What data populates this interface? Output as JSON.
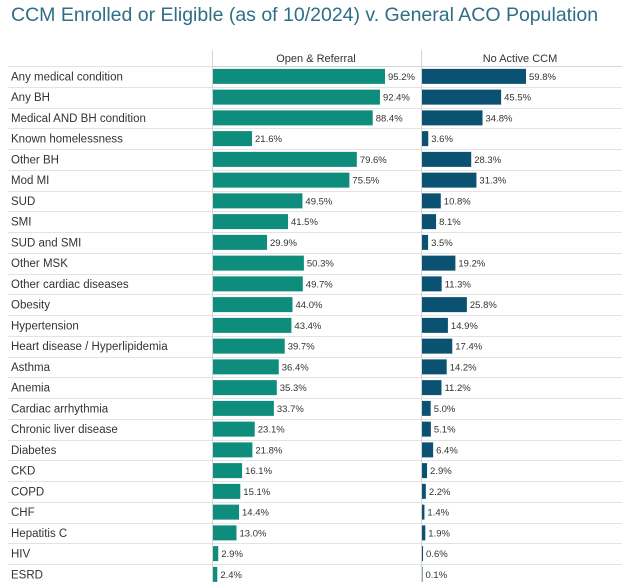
{
  "colors": {
    "series1": "#0e8c7c",
    "series2": "#0b5272",
    "title": "#2e6e86",
    "grid": "#e3e3e3"
  },
  "chart_data": {
    "type": "bar",
    "orientation": "horizontal",
    "title": "CCM Enrolled or Eligible (as of 10/2024) v. General ACO Population",
    "categories": [
      "Any medical condition",
      "Any BH",
      "Medical AND BH condition",
      "Known homelessness",
      "Other BH",
      "Mod MI",
      "SUD",
      "SMI",
      "SUD and SMI",
      "Other MSK",
      "Other cardiac diseases",
      "Obesity",
      "Hypertension",
      "Heart disease / Hyperlipidemia",
      "Asthma",
      "Anemia",
      "Cardiac arrhythmia",
      "Chronic liver disease",
      "Diabetes",
      "CKD",
      "COPD",
      "CHF",
      "Hepatitis C",
      "HIV",
      "ESRD"
    ],
    "series": [
      {
        "name": "Open & Referral",
        "unit": "%",
        "values": [
          95.2,
          92.4,
          88.4,
          21.6,
          79.6,
          75.5,
          49.5,
          41.5,
          29.9,
          50.3,
          49.7,
          44.0,
          43.4,
          39.7,
          36.4,
          35.3,
          33.7,
          23.1,
          21.8,
          16.1,
          15.1,
          14.4,
          13.0,
          2.9,
          2.4
        ],
        "labels": [
          "95.2%",
          "92.4%",
          "88.4%",
          "21.6%",
          "79.6%",
          "75.5%",
          "49.5%",
          "41.5%",
          "29.9%",
          "50.3%",
          "49.7%",
          "44.0%",
          "43.4%",
          "39.7%",
          "36.4%",
          "35.3%",
          "33.7%",
          "23.1%",
          "21.8%",
          "16.1%",
          "15.1%",
          "14.4%",
          "13.0%",
          "2.9%",
          "2.4%"
        ]
      },
      {
        "name": "No Active CCM",
        "unit": "%",
        "values": [
          59.8,
          45.5,
          34.8,
          3.6,
          28.3,
          31.3,
          10.8,
          8.1,
          3.5,
          19.2,
          11.3,
          25.8,
          14.9,
          17.4,
          14.2,
          11.2,
          5.0,
          5.1,
          6.4,
          2.9,
          2.2,
          1.4,
          1.9,
          0.6,
          0.1
        ],
        "labels": [
          "59.8%",
          "45.5%",
          "34.8%",
          "3.6%",
          "28.3%",
          "31.3%",
          "10.8%",
          "8.1%",
          "3.5%",
          "19.2%",
          "11.3%",
          "25.8%",
          "14.9%",
          "17.4%",
          "14.2%",
          "11.2%",
          "5.0%",
          "5.1%",
          "6.4%",
          "2.9%",
          "2.2%",
          "1.4%",
          "1.9%",
          "0.6%",
          "0.1%"
        ]
      }
    ],
    "xlim": [
      0,
      100
    ]
  }
}
